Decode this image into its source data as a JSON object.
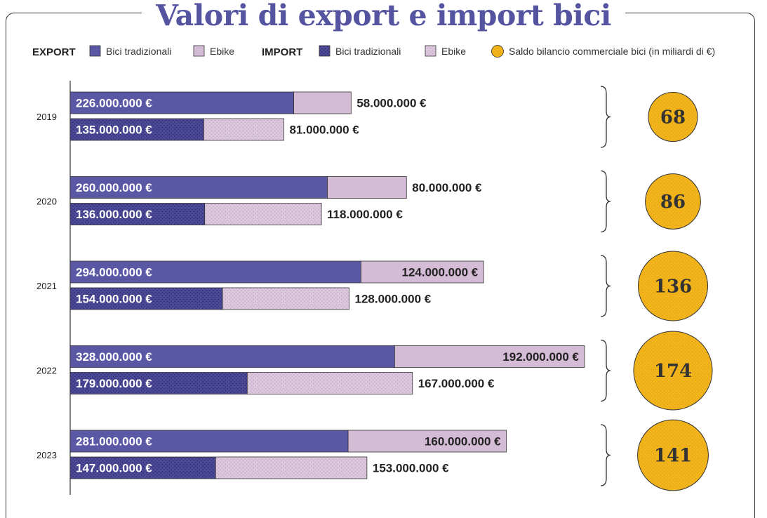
{
  "title": "Valori di export e import bici",
  "colors": {
    "traditional": "#5a57a5",
    "ebike": "#d5bcd6",
    "bubble": "#f2b51c",
    "title": "#5454a0"
  },
  "legend": {
    "export_label": "EXPORT",
    "import_label": "IMPORT",
    "traditional": "Bici tradizionali",
    "ebike": "Ebike",
    "balance": "Saldo bilancio commerciale bici (in miliardi di €)"
  },
  "chart_data": {
    "type": "bar",
    "stacked": true,
    "orientation": "horizontal",
    "categories": [
      "2019",
      "2020",
      "2021",
      "2022",
      "2023"
    ],
    "export": {
      "traditional": [
        226000000,
        260000000,
        294000000,
        328000000,
        281000000
      ],
      "ebike": [
        58000000,
        80000000,
        124000000,
        192000000,
        160000000
      ],
      "traditional_labels": [
        "226.000.000 €",
        "260.000.000 €",
        "294.000.000 €",
        "328.000.000 €",
        "281.000.000 €"
      ],
      "ebike_labels": [
        "58.000.000 €",
        "80.000.000 €",
        "124.000.000 €",
        "192.000.000 €",
        "160.000.000 €"
      ]
    },
    "import": {
      "traditional": [
        135000000,
        136000000,
        154000000,
        179000000,
        147000000
      ],
      "ebike": [
        81000000,
        118000000,
        128000000,
        167000000,
        153000000
      ],
      "traditional_labels": [
        "135.000.000 €",
        "136.000.000 €",
        "154.000.000 €",
        "179.000.000 €",
        "147.000.000 €"
      ],
      "ebike_labels": [
        "81.000.000 €",
        "118.000.000 €",
        "128.000.000 €",
        "167.000.000 €",
        "153.000.000 €"
      ]
    },
    "balance": [
      68,
      86,
      136,
      174,
      141
    ],
    "balance_labels": [
      "68",
      "86",
      "136",
      "174",
      "141"
    ],
    "ebike_label_inside": [
      false,
      false,
      true,
      true,
      true
    ]
  }
}
